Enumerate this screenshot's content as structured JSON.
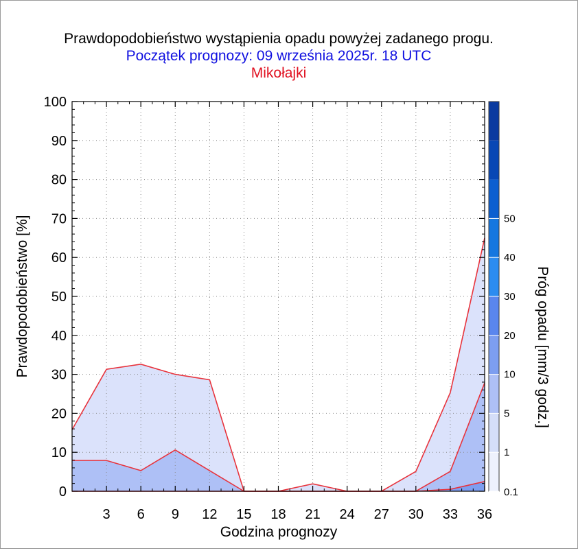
{
  "chart_data": {
    "type": "area",
    "title": "Prawdopodobieństwo wystąpienia opadu powyżej zadanego progu.",
    "subtitle": "Początek prognozy: 09 września 2025r. 18 UTC",
    "location": "Mikołajki",
    "xlabel": "Godzina prognozy",
    "ylabel": "Prawdopodobieństwo [%]",
    "xlim": [
      0,
      36
    ],
    "ylim": [
      0,
      100
    ],
    "x_ticks": [
      3,
      6,
      9,
      12,
      15,
      18,
      21,
      24,
      27,
      30,
      33,
      36
    ],
    "y_ticks": [
      0,
      10,
      20,
      30,
      40,
      50,
      60,
      70,
      80,
      90,
      100
    ],
    "x": [
      0,
      3,
      6,
      9,
      12,
      15,
      18,
      21,
      24,
      27,
      30,
      33,
      36
    ],
    "series": [
      {
        "name": "0.1",
        "color": "#dbe2fb",
        "values": [
          15.8,
          31.3,
          32.6,
          30.0,
          28.6,
          0,
          0,
          1.9,
          0,
          0,
          5.1,
          25.3,
          65.0
        ]
      },
      {
        "name": "1",
        "color": "#aec0f6",
        "values": [
          7.9,
          7.9,
          5.3,
          10.6,
          5.3,
          0,
          0,
          0,
          0,
          0,
          0,
          5.1,
          27.8
        ]
      },
      {
        "name": "5",
        "color": "#7d9ef0",
        "values": [
          0,
          0,
          0,
          0,
          0,
          0,
          0,
          0,
          0,
          0,
          0,
          0.5,
          2.5
        ]
      }
    ],
    "line_color": "#e8333c",
    "grid": true,
    "colorbar": {
      "label": "Próg opadu [mm/3 godz.]",
      "labels": [
        "0.1",
        "1",
        "5",
        "10",
        "20",
        "30",
        "40",
        "50"
      ],
      "colors": [
        "#eef1fd",
        "#d5def9",
        "#aec0f6",
        "#7d9ef0",
        "#5a86ee",
        "#2c8cf0",
        "#1577e0",
        "#0c5fd0",
        "#0847b5",
        "#0a3aa0"
      ]
    }
  },
  "colors": {
    "title": "#000000",
    "subtitle": "#1010e0",
    "location": "#e01020"
  }
}
